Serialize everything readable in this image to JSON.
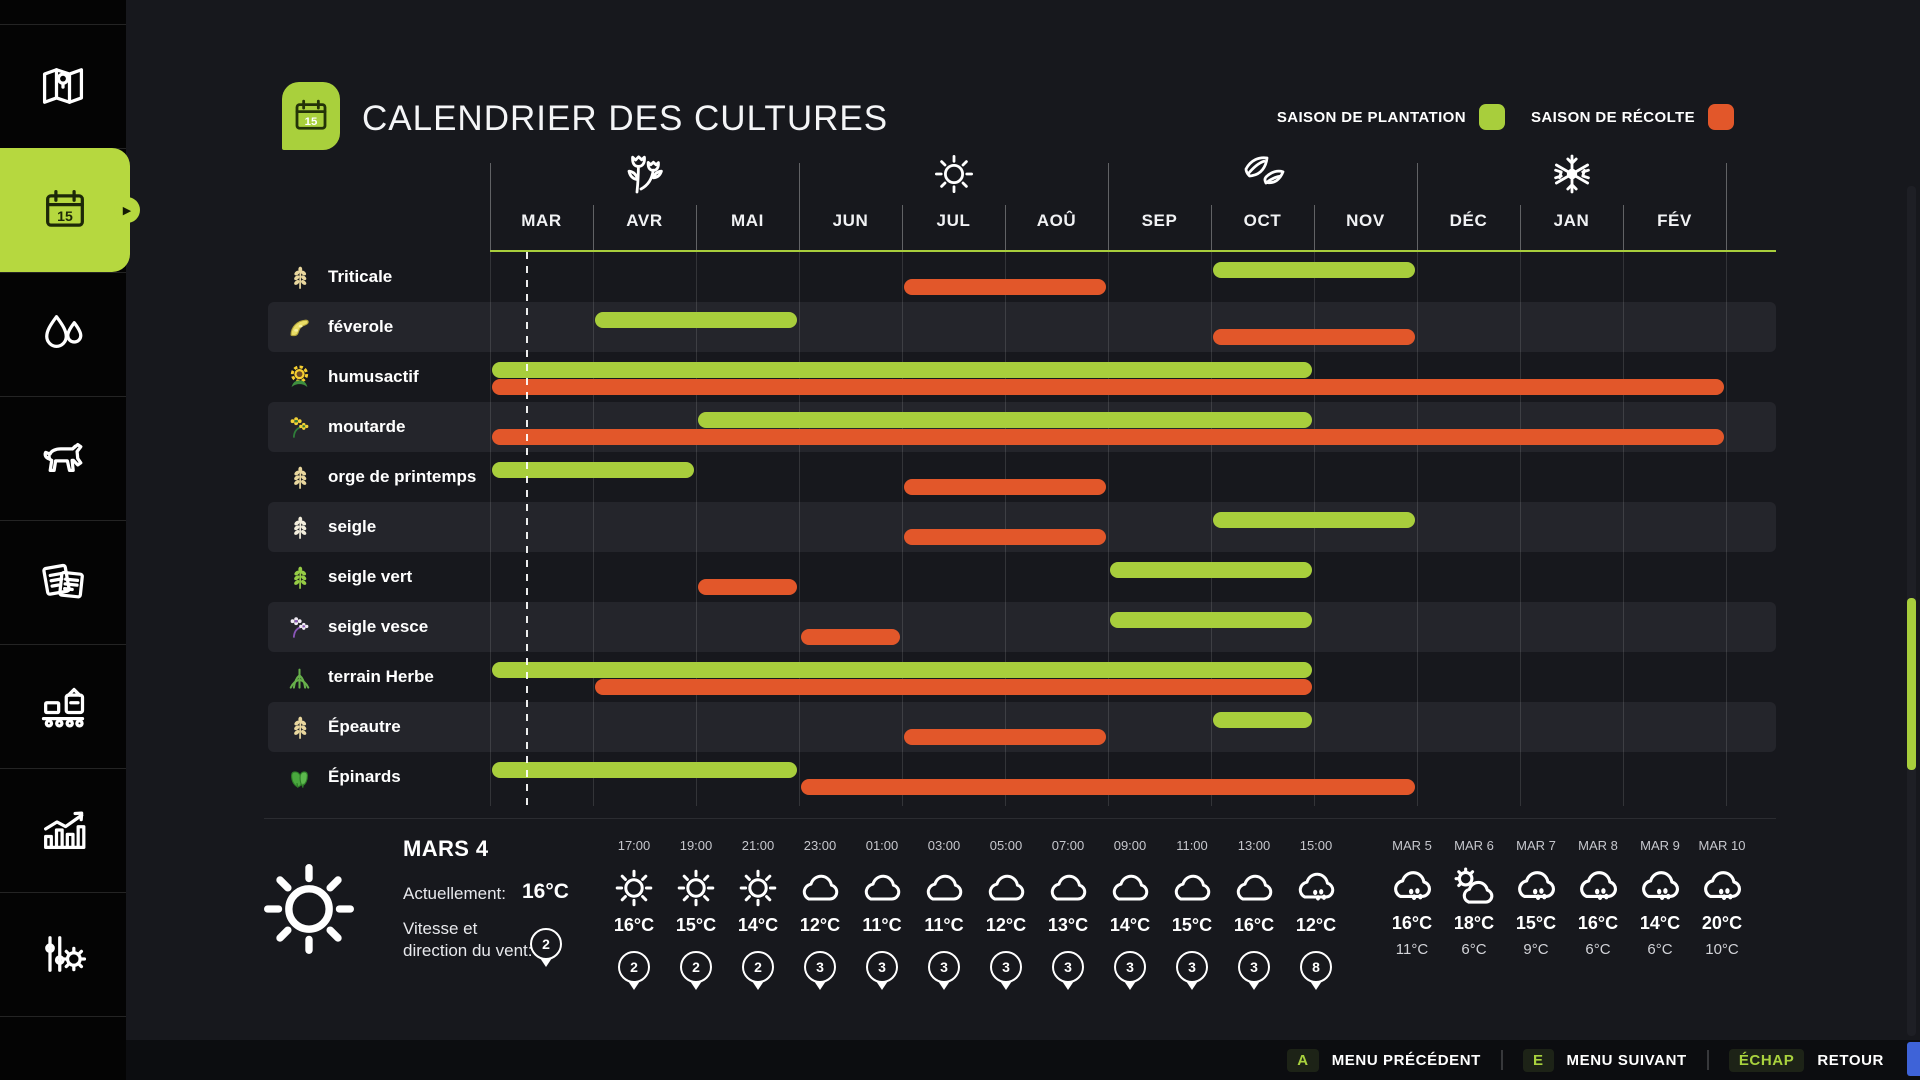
{
  "header": {
    "title": "CALENDRIER DES CULTURES",
    "badge_icon": "calendar-icon",
    "legend": [
      {
        "label": "SAISON DE PLANTATION",
        "key": "plantation",
        "color": "#a8ce3c"
      },
      {
        "label": "SAISON DE RÉCOLTE",
        "key": "recolte",
        "color": "#e2572a"
      }
    ]
  },
  "sidebar": {
    "active_index": 1,
    "items": [
      {
        "name": "map",
        "icon": "map-icon"
      },
      {
        "name": "calendar",
        "icon": "calendar-icon"
      },
      {
        "name": "water",
        "icon": "water-icon"
      },
      {
        "name": "animals",
        "icon": "cow-icon"
      },
      {
        "name": "contracts",
        "icon": "documents-icon"
      },
      {
        "name": "production",
        "icon": "production-icon"
      },
      {
        "name": "statistics",
        "icon": "stats-icon"
      },
      {
        "name": "settings",
        "icon": "settings-icon"
      }
    ]
  },
  "chart_data": {
    "type": "gantt",
    "title": "CALENDRIER DES CULTURES",
    "months": [
      "MAR",
      "AVR",
      "MAI",
      "JUN",
      "JUL",
      "AOÛ",
      "SEP",
      "OCT",
      "NOV",
      "DÉC",
      "JAN",
      "FÉV"
    ],
    "month_index_origin": "MAR",
    "seasons": [
      {
        "name": "printemps",
        "icon": "flower-icon",
        "center_month": 1.5
      },
      {
        "name": "ete",
        "icon": "sun-icon",
        "center_month": 4.5
      },
      {
        "name": "automne",
        "icon": "leaves-icon",
        "center_month": 7.5
      },
      {
        "name": "hiver",
        "icon": "snowflake-icon",
        "center_month": 10.5
      }
    ],
    "legend": {
      "plantation": "#a8ce3c",
      "recolte": "#e2572a"
    },
    "current_day_marker": {
      "month_offset": 0.35
    },
    "rows": [
      {
        "crop": "Triticale",
        "icon": "wheat-icon",
        "bars": [
          {
            "type": "plantation",
            "start": 7,
            "end": 9
          },
          {
            "type": "recolte",
            "start": 4,
            "end": 6
          }
        ]
      },
      {
        "crop": "féverole",
        "icon": "bean-icon",
        "bars": [
          {
            "type": "plantation",
            "start": 1,
            "end": 3
          },
          {
            "type": "recolte",
            "start": 7,
            "end": 9
          }
        ]
      },
      {
        "crop": "humusactif",
        "icon": "sunflower-icon",
        "bars": [
          {
            "type": "plantation",
            "start": 0,
            "end": 8
          },
          {
            "type": "recolte",
            "start": 0,
            "end": 12
          }
        ]
      },
      {
        "crop": "moutarde",
        "icon": "mustard-flower-icon",
        "bars": [
          {
            "type": "plantation",
            "start": 2,
            "end": 8
          },
          {
            "type": "recolte",
            "start": 0,
            "end": 12
          }
        ]
      },
      {
        "crop": "orge de printemps",
        "icon": "wheat-icon",
        "bars": [
          {
            "type": "plantation",
            "start": 0,
            "end": 2
          },
          {
            "type": "recolte",
            "start": 4,
            "end": 6
          }
        ]
      },
      {
        "crop": "seigle",
        "icon": "wheat-pale-icon",
        "bars": [
          {
            "type": "plantation",
            "start": 7,
            "end": 9
          },
          {
            "type": "recolte",
            "start": 4,
            "end": 6
          }
        ]
      },
      {
        "crop": "seigle vert",
        "icon": "wheat-green-icon",
        "bars": [
          {
            "type": "plantation",
            "start": 6,
            "end": 8
          },
          {
            "type": "recolte",
            "start": 2,
            "end": 3
          }
        ]
      },
      {
        "crop": "seigle vesce",
        "icon": "vetch-flower-icon",
        "bars": [
          {
            "type": "plantation",
            "start": 6,
            "end": 8
          },
          {
            "type": "recolte",
            "start": 3,
            "end": 4
          }
        ]
      },
      {
        "crop": "terrain Herbe",
        "icon": "grass-icon",
        "bars": [
          {
            "type": "plantation",
            "start": 0,
            "end": 8
          },
          {
            "type": "recolte",
            "start": 1,
            "end": 8
          }
        ]
      },
      {
        "crop": "Épeautre",
        "icon": "wheat-icon",
        "bars": [
          {
            "type": "plantation",
            "start": 7,
            "end": 8
          },
          {
            "type": "recolte",
            "start": 4,
            "end": 6
          }
        ]
      },
      {
        "crop": "Épinards",
        "icon": "spinach-icon",
        "bars": [
          {
            "type": "plantation",
            "start": 0,
            "end": 3
          },
          {
            "type": "recolte",
            "start": 3,
            "end": 9
          }
        ]
      }
    ]
  },
  "weather": {
    "current": {
      "date": "MARS 4",
      "icon": "sun",
      "now_label": "Actuellement:",
      "temp": "16°C",
      "wind_label_1": "Vitesse et",
      "wind_label_2": "direction du vent:",
      "wind": "2"
    },
    "hourly": [
      {
        "time": "17:00",
        "icon": "sun",
        "temp": "16°C",
        "wind": "2"
      },
      {
        "time": "19:00",
        "icon": "sun",
        "temp": "15°C",
        "wind": "2"
      },
      {
        "time": "21:00",
        "icon": "sun",
        "temp": "14°C",
        "wind": "2"
      },
      {
        "time": "23:00",
        "icon": "cloud",
        "temp": "12°C",
        "wind": "3"
      },
      {
        "time": "01:00",
        "icon": "cloud",
        "temp": "11°C",
        "wind": "3"
      },
      {
        "time": "03:00",
        "icon": "cloud",
        "temp": "11°C",
        "wind": "3"
      },
      {
        "time": "05:00",
        "icon": "cloud",
        "temp": "12°C",
        "wind": "3"
      },
      {
        "time": "07:00",
        "icon": "cloud",
        "temp": "13°C",
        "wind": "3"
      },
      {
        "time": "09:00",
        "icon": "cloud",
        "temp": "14°C",
        "wind": "3"
      },
      {
        "time": "11:00",
        "icon": "cloud",
        "temp": "15°C",
        "wind": "3"
      },
      {
        "time": "13:00",
        "icon": "cloud",
        "temp": "16°C",
        "wind": "3"
      },
      {
        "time": "15:00",
        "icon": "rain",
        "temp": "12°C",
        "wind": "8"
      }
    ],
    "daily": [
      {
        "date": "MAR 5",
        "icon": "rain",
        "high": "16°C",
        "low": "11°C"
      },
      {
        "date": "MAR 6",
        "icon": "partly",
        "high": "18°C",
        "low": "6°C"
      },
      {
        "date": "MAR 7",
        "icon": "rain",
        "high": "15°C",
        "low": "9°C"
      },
      {
        "date": "MAR 8",
        "icon": "rain",
        "high": "16°C",
        "low": "6°C"
      },
      {
        "date": "MAR 9",
        "icon": "rain",
        "high": "14°C",
        "low": "6°C"
      },
      {
        "date": "MAR 10",
        "icon": "rain",
        "high": "20°C",
        "low": "10°C"
      }
    ]
  },
  "footer": {
    "hints": [
      {
        "key": "A",
        "label": "MENU PRÉCÉDENT"
      },
      {
        "key": "E",
        "label": "MENU SUIVANT"
      },
      {
        "key": "ÉCHAP",
        "label": "RETOUR"
      }
    ]
  },
  "colors": {
    "plantation": "#a8ce3c",
    "recolte": "#e2572a",
    "accent_blue": "#3e63d8"
  }
}
